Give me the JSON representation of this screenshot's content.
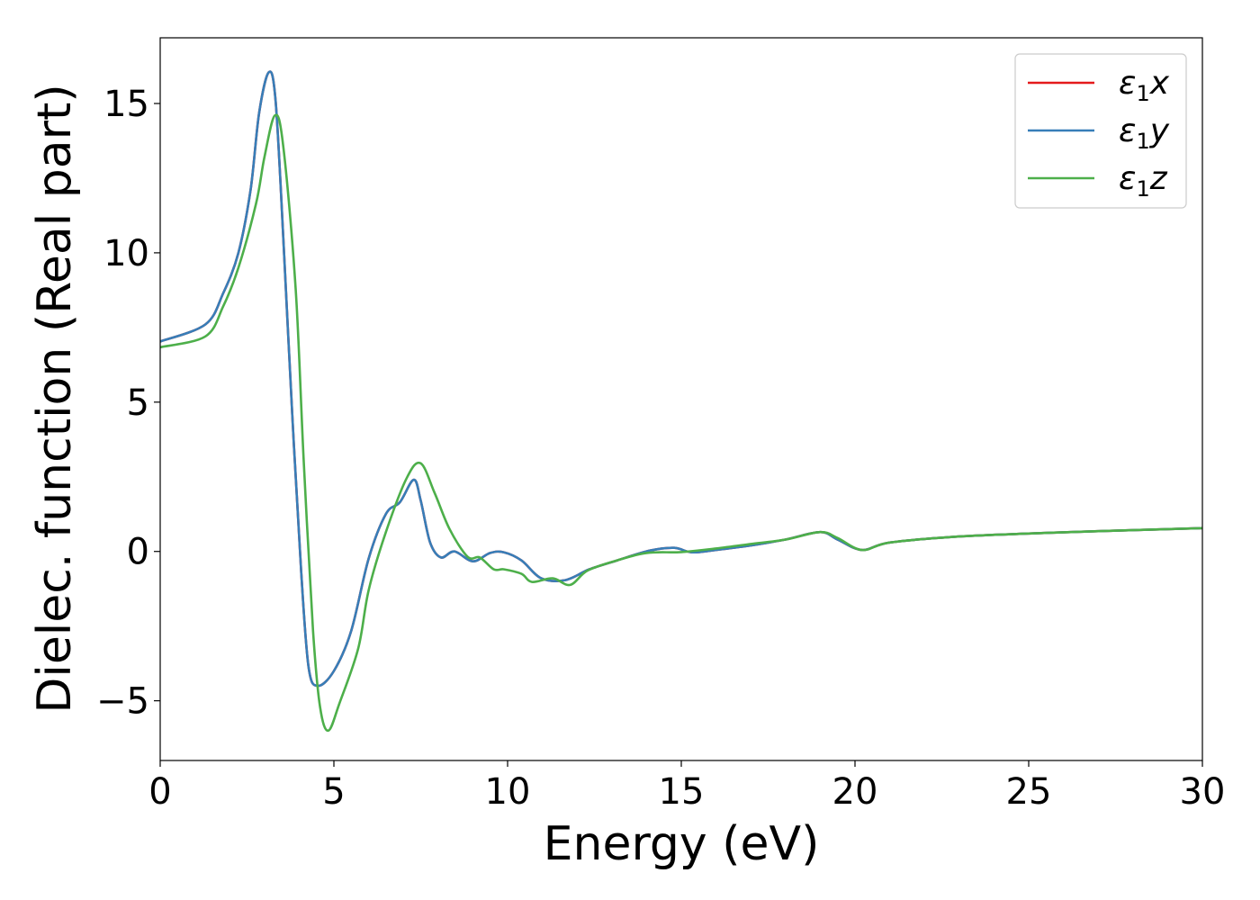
{
  "chart_data": {
    "type": "line",
    "title": "",
    "xlabel": "Energy (eV)",
    "ylabel": "Dielec. function (Real part)",
    "xlim": [
      0,
      30
    ],
    "ylim": [
      -7.0,
      17.2
    ],
    "xticks": [
      0,
      5,
      10,
      15,
      20,
      25,
      30
    ],
    "xtick_labels": [
      "0",
      "5",
      "10",
      "15",
      "20",
      "25",
      "30"
    ],
    "yticks": [
      -5,
      0,
      5,
      10,
      15
    ],
    "ytick_labels": [
      "−5",
      "0",
      "5",
      "10",
      "15"
    ],
    "grid": false,
    "legend_position": "top-right",
    "series": [
      {
        "name": "ε1x",
        "legend_base": "ε",
        "legend_sub": "1",
        "legend_suffix": "x",
        "color": "#e41a1c",
        "x": [
          0,
          1.3,
          1.81,
          2.25,
          2.6,
          2.85,
          3.13,
          3.32,
          3.54,
          3.8,
          4.06,
          4.27,
          4.53,
          5.0,
          5.5,
          6.0,
          6.5,
          6.9,
          7.3,
          7.5,
          7.77,
          8.08,
          8.47,
          9.0,
          9.5,
          9.9,
          10.4,
          10.97,
          11.66,
          12.35,
          13.15,
          14.1,
          14.8,
          15.3,
          16,
          17,
          18,
          19,
          19.5,
          20.2,
          21,
          23,
          25,
          27,
          30
        ],
        "y": [
          7.03,
          7.6,
          8.64,
          10.0,
          12.1,
          14.7,
          16.05,
          15.1,
          10.6,
          4.6,
          -0.7,
          -3.86,
          -4.5,
          -4.0,
          -2.65,
          -0.24,
          1.26,
          1.65,
          2.4,
          1.7,
          0.3,
          -0.2,
          0.0,
          -0.33,
          -0.05,
          -0.03,
          -0.3,
          -0.9,
          -0.96,
          -0.6,
          -0.3,
          0.03,
          0.12,
          -0.03,
          0.05,
          0.2,
          0.4,
          0.65,
          0.4,
          0.05,
          0.3,
          0.5,
          0.6,
          0.68,
          0.78
        ]
      },
      {
        "name": "ε1y",
        "legend_base": "ε",
        "legend_sub": "1",
        "legend_suffix": "y",
        "color": "#377eb8",
        "x": [
          0,
          1.3,
          1.81,
          2.25,
          2.6,
          2.85,
          3.13,
          3.32,
          3.54,
          3.8,
          4.06,
          4.27,
          4.53,
          5.0,
          5.5,
          6.0,
          6.5,
          6.9,
          7.3,
          7.5,
          7.77,
          8.08,
          8.47,
          9.0,
          9.5,
          9.9,
          10.4,
          10.97,
          11.66,
          12.35,
          13.15,
          14.1,
          14.8,
          15.3,
          16,
          17,
          18,
          19,
          19.5,
          20.2,
          21,
          23,
          25,
          27,
          30
        ],
        "y": [
          7.03,
          7.6,
          8.64,
          10.0,
          12.1,
          14.7,
          16.05,
          15.1,
          10.6,
          4.6,
          -0.7,
          -3.86,
          -4.5,
          -4.0,
          -2.65,
          -0.24,
          1.26,
          1.65,
          2.4,
          1.7,
          0.3,
          -0.2,
          0.0,
          -0.33,
          -0.05,
          -0.03,
          -0.3,
          -0.9,
          -0.96,
          -0.6,
          -0.3,
          0.03,
          0.12,
          -0.03,
          0.05,
          0.2,
          0.4,
          0.65,
          0.4,
          0.05,
          0.3,
          0.5,
          0.6,
          0.68,
          0.78
        ]
      },
      {
        "name": "ε1z",
        "legend_base": "ε",
        "legend_sub": "1",
        "legend_suffix": "z",
        "color": "#4daf4a",
        "x": [
          0,
          1.3,
          1.81,
          2.25,
          2.76,
          3.0,
          3.3,
          3.54,
          3.9,
          4.13,
          4.4,
          4.6,
          4.84,
          5.17,
          5.7,
          6.0,
          6.5,
          7.1,
          7.5,
          7.9,
          8.33,
          8.85,
          9.2,
          9.6,
          9.9,
          10.4,
          10.7,
          11.3,
          11.8,
          12.3,
          13.15,
          14.0,
          15.0,
          16,
          17,
          18,
          19,
          19.5,
          20.2,
          21,
          23,
          25,
          27,
          30
        ],
        "y": [
          6.84,
          7.2,
          8.2,
          9.5,
          11.65,
          13.2,
          14.6,
          13.6,
          8.8,
          3.07,
          -2.65,
          -5.2,
          -6.0,
          -5.05,
          -3.25,
          -1.3,
          0.66,
          2.47,
          2.95,
          1.96,
          0.75,
          -0.18,
          -0.2,
          -0.6,
          -0.6,
          -0.75,
          -1.02,
          -0.9,
          -1.12,
          -0.64,
          -0.3,
          -0.05,
          -0.02,
          0.1,
          0.25,
          0.4,
          0.65,
          0.45,
          0.05,
          0.3,
          0.5,
          0.6,
          0.68,
          0.78
        ]
      }
    ]
  }
}
